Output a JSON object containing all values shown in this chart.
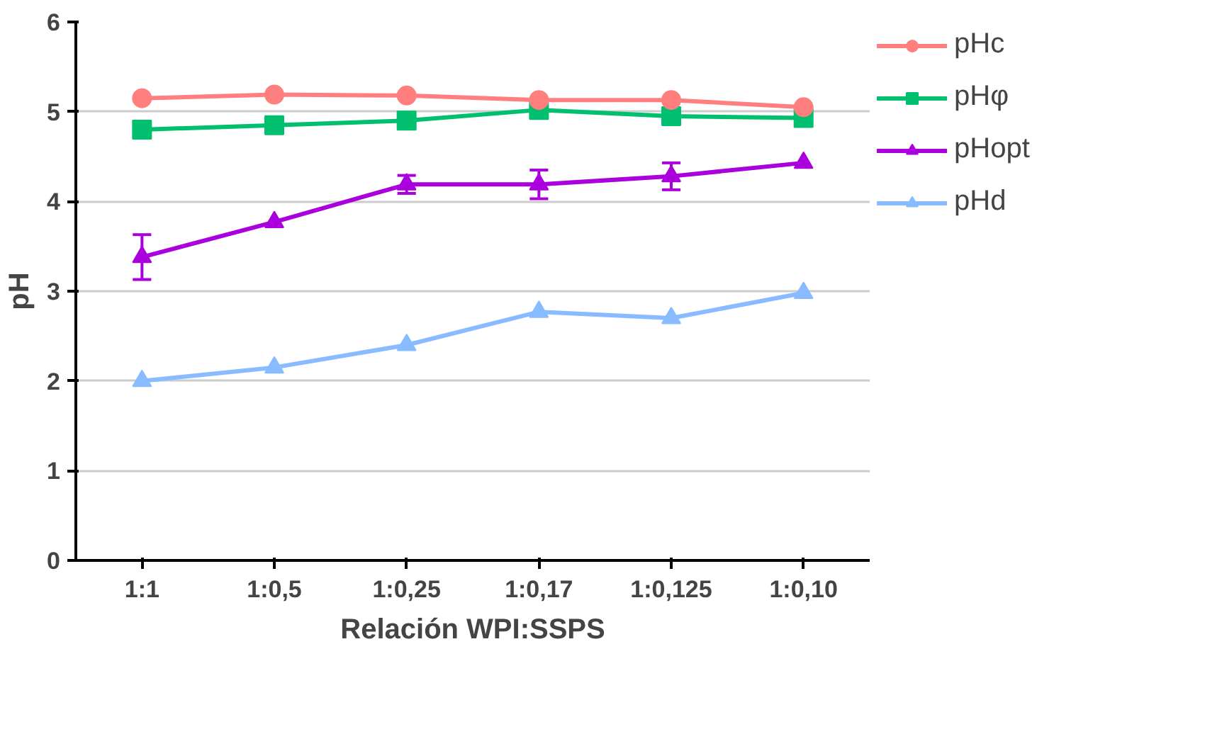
{
  "chart_data": {
    "type": "line",
    "xlabel": "Relación WPI:SSPS",
    "ylabel": "pH",
    "categories": [
      "1:1",
      "1:0,5",
      "1:0,25",
      "1:0,17",
      "1:0,125",
      "1:0,10"
    ],
    "ylim": [
      0,
      6
    ],
    "yticks": [
      0,
      1,
      2,
      3,
      4,
      5,
      6
    ],
    "grid": "y",
    "legend": "right",
    "series": [
      {
        "name": "pHc",
        "color": "#ff7f7f",
        "marker": "circle",
        "values": [
          5.15,
          5.19,
          5.18,
          5.13,
          5.13,
          5.05
        ]
      },
      {
        "name": "pHφ",
        "color": "#00bf6f",
        "marker": "square",
        "values": [
          4.8,
          4.85,
          4.9,
          5.02,
          4.95,
          4.93
        ]
      },
      {
        "name": "pHopt",
        "color": "#aa00dd",
        "marker": "triangle",
        "values": [
          3.38,
          3.77,
          4.19,
          4.19,
          4.28,
          4.43
        ],
        "errors": [
          0.25,
          null,
          0.1,
          0.16,
          0.15,
          null
        ]
      },
      {
        "name": "pHd",
        "color": "#88bbff",
        "marker": "triangle",
        "values": [
          2.0,
          2.15,
          2.4,
          2.77,
          2.7,
          2.98
        ]
      }
    ]
  }
}
